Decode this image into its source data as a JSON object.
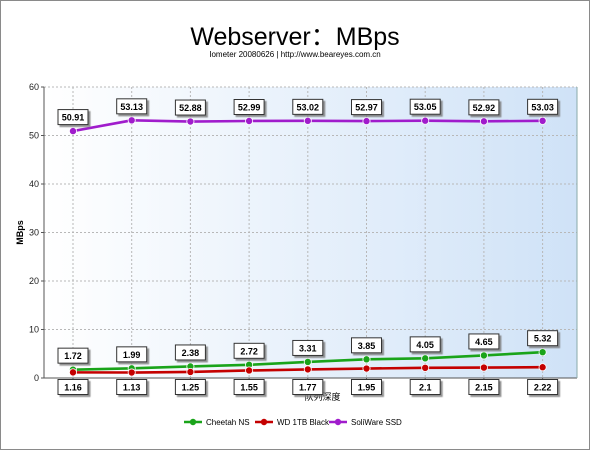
{
  "title": "Webserver：MBps",
  "subtitle": "Iometer 20080626 | http://www.beareyes.com.cn",
  "chart_data": {
    "type": "line",
    "ylabel": "MBps",
    "xlabel": "队列深度",
    "ylim": [
      0,
      60
    ],
    "yticks": [
      0,
      10,
      20,
      30,
      40,
      50,
      60
    ],
    "x_count": 9,
    "grid": true,
    "legend_position": "bottom-center",
    "series": [
      {
        "name": "Cheetah NS",
        "color": "#1aa41a",
        "label_side": "above",
        "values": [
          1.72,
          1.99,
          2.38,
          2.72,
          3.31,
          3.85,
          4.05,
          4.65,
          5.32
        ]
      },
      {
        "name": "WD 1TB Black",
        "color": "#c40000",
        "label_side": "below",
        "values": [
          1.16,
          1.13,
          1.25,
          1.55,
          1.77,
          1.95,
          2.1,
          2.15,
          2.22
        ]
      },
      {
        "name": "SoliWare SSD",
        "color": "#a01ccc",
        "label_side": "above",
        "values": [
          50.91,
          53.13,
          52.88,
          52.99,
          53.02,
          52.97,
          53.05,
          52.92,
          53.03
        ]
      }
    ]
  }
}
